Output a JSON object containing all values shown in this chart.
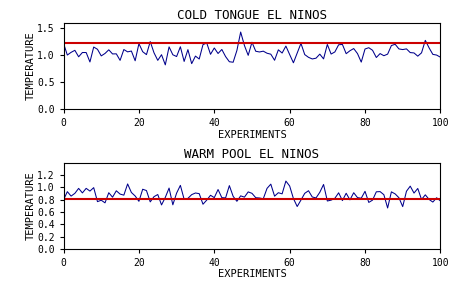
{
  "title1": "COLD TONGUE EL NINOS",
  "title2": "WARM POOL EL NINOS",
  "xlabel": "EXPERIMENTS",
  "ylabel": "TEMPERATURE",
  "xlim": [
    0,
    100
  ],
  "ylim1": [
    0.0,
    1.6
  ],
  "ylim2": [
    0.0,
    1.4
  ],
  "yticks1": [
    0.0,
    0.5,
    1.0,
    1.5
  ],
  "yticks2": [
    0.0,
    0.2,
    0.4,
    0.6,
    0.8,
    1.0,
    1.2
  ],
  "xticks": [
    0,
    20,
    40,
    60,
    80,
    100
  ],
  "red_line1": 1.22,
  "red_line2": 0.81,
  "blue_color": "#00008B",
  "red_color": "#CC0000",
  "bg_color": "#FFFFFF",
  "noise_scale1": 0.1,
  "noise_scale2": 0.09,
  "base_mean1": 1.05,
  "base_mean2": 0.86,
  "title_fontsize": 9,
  "label_fontsize": 7.5,
  "tick_fontsize": 7
}
